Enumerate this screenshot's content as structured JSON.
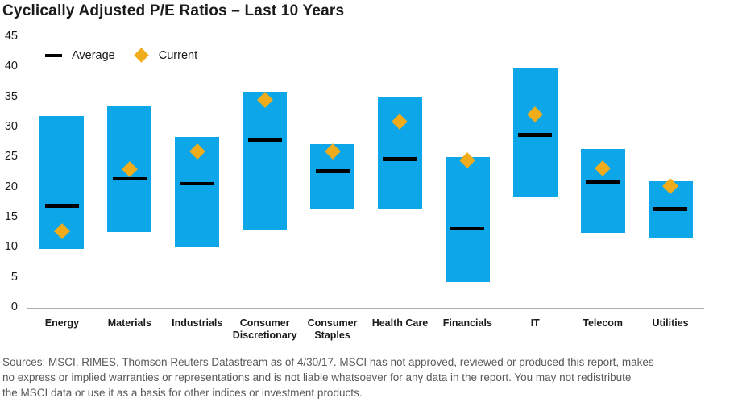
{
  "title": "Cyclically Adjusted P/E Ratios – Last 10 Years",
  "legend": {
    "average_label": "Average",
    "current_label": "Current"
  },
  "footer_lines": [
    "Sources: MSCI, RIMES, Thomson Reuters Datastream as of 4/30/17. MSCI has not approved, reviewed or produced this report, makes",
    "no express or implied warranties or representations and is not liable whatsoever for any data in the report. You may not redistribute",
    "the MSCI data or use it as a basis for other indices or investment products."
  ],
  "colors": {
    "bar_blue": "#0DA6E8",
    "current_gold": "#F0AC1A",
    "average_black": "#000000",
    "axis_gray": "#ADADAD",
    "text_dark": "#1A1A1A",
    "footer_gray": "#58595B"
  },
  "chart_data": {
    "type": "bar",
    "subtype": "floating-range-with-markers",
    "title": "Cyclically Adjusted P/E Ratios – Last 10 Years",
    "categories": [
      "Energy",
      "Materials",
      "Industrials",
      "Consumer Discretionary",
      "Consumer Staples",
      "Health Care",
      "Financials",
      "IT",
      "Telecom",
      "Utilities"
    ],
    "series": [
      {
        "name": "10-year range low",
        "values": [
          9.6,
          12.5,
          10.0,
          12.7,
          16.3,
          16.2,
          4.2,
          18.2,
          12.3,
          11.4
        ]
      },
      {
        "name": "10-year range high",
        "values": [
          31.8,
          33.5,
          28.2,
          35.8,
          27.1,
          34.9,
          24.9,
          39.6,
          26.3,
          20.9
        ]
      },
      {
        "name": "Average",
        "values": [
          16.8,
          21.3,
          20.5,
          27.8,
          22.6,
          24.6,
          13.0,
          28.6,
          20.8,
          16.3
        ]
      },
      {
        "name": "Current",
        "values": [
          12.6,
          22.9,
          25.8,
          34.4,
          25.9,
          30.8,
          24.4,
          32.0,
          23.0,
          20.1
        ]
      }
    ],
    "xlabel": "",
    "ylabel": "",
    "ylim": [
      0,
      45
    ],
    "yticks": [
      0,
      5,
      10,
      15,
      20,
      25,
      30,
      35,
      40,
      45
    ],
    "grid": false,
    "legend_position": "top-left"
  }
}
